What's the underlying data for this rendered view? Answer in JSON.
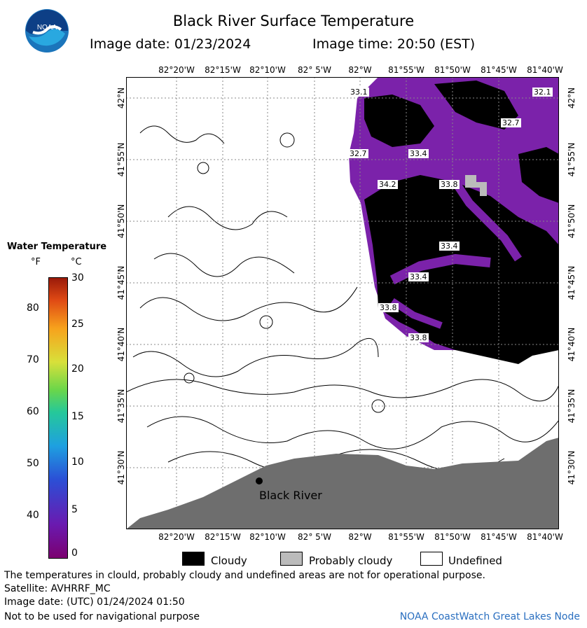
{
  "header": {
    "title": "Black River Surface Temperature",
    "image_date": "Image date: 01/23/2024",
    "image_time": "Image time: 20:50 (EST)"
  },
  "logo": {
    "text": "NOAA"
  },
  "map": {
    "lon_labels": [
      "82°20'W",
      "82°15'W",
      "82°10'W",
      "82° 5'W",
      "82°W",
      "81°55'W",
      "81°50'W",
      "81°45'W",
      "81°40'W"
    ],
    "lat_labels": [
      "42°N",
      "41°55'N",
      "41°50'N",
      "41°45'N",
      "41°40'N",
      "41°35'N",
      "41°30'N"
    ],
    "temperature_labels": [
      "33.1",
      "32.1",
      "32.7",
      "32.7",
      "33.4",
      "34.2",
      "33.8",
      "33.4",
      "33.4",
      "33.8",
      "33.8"
    ],
    "place_label": "Black River",
    "colors": {
      "land": "#6e6e6e",
      "cloud": "#000000",
      "water_temp": "#7a1fa8",
      "probably_cloudy": "#bbbbbb"
    }
  },
  "scale": {
    "title": "Water Temperature",
    "unit_f": "°F",
    "unit_c": "°C",
    "f_ticks": [
      "80",
      "70",
      "60",
      "50",
      "40"
    ],
    "c_ticks": [
      "30",
      "25",
      "20",
      "15",
      "10",
      "5",
      "0"
    ]
  },
  "legend": {
    "cloudy": "Cloudy",
    "probably_cloudy": "Probably cloudy",
    "undefined": "Undefined"
  },
  "footer": {
    "disclaimer": "The temperatures in clould, probably cloudy and undefined areas are not for operational purpose.",
    "satellite": "Satellite: AVHRRF_MC",
    "utc_date": "Image date: (UTC) 01/24/2024  01:50",
    "nav_warning": "Not to be used for navigational purpose",
    "credit": "NOAA CoastWatch Great Lakes Node"
  }
}
